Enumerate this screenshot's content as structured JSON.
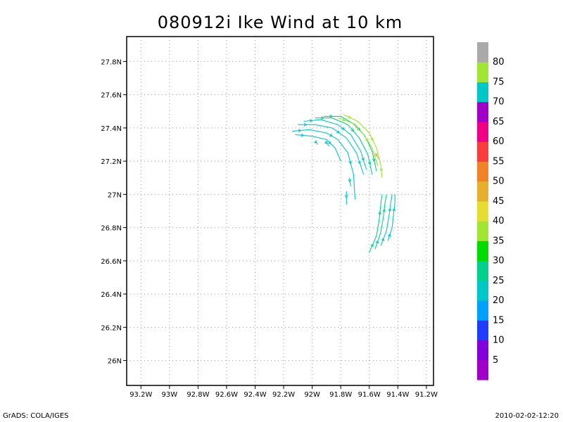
{
  "title": "080912i Ike Wind at 10 km",
  "footer": {
    "credit": "GrADS: COLA/IGES",
    "timestamp": "2010-02-02-12:20"
  },
  "map": {
    "lon_range": [
      -93.3,
      -91.15
    ],
    "lat_range": [
      25.85,
      27.95
    ],
    "lon_ticks": [
      {
        "v": -93.2,
        "label": "93.2W"
      },
      {
        "v": -93.0,
        "label": "93W"
      },
      {
        "v": -92.8,
        "label": "92.8W"
      },
      {
        "v": -92.6,
        "label": "92.6W"
      },
      {
        "v": -92.4,
        "label": "92.4W"
      },
      {
        "v": -92.2,
        "label": "92.2W"
      },
      {
        "v": -92.0,
        "label": "92W"
      },
      {
        "v": -91.8,
        "label": "91.8W"
      },
      {
        "v": -91.6,
        "label": "91.6W"
      },
      {
        "v": -91.4,
        "label": "91.4W"
      },
      {
        "v": -91.2,
        "label": "91.2W"
      }
    ],
    "lat_ticks": [
      {
        "v": 26.0,
        "label": "26N"
      },
      {
        "v": 26.2,
        "label": "26.2N"
      },
      {
        "v": 26.4,
        "label": "26.4N"
      },
      {
        "v": 26.6,
        "label": "26.6N"
      },
      {
        "v": 26.8,
        "label": "26.8N"
      },
      {
        "v": 27.0,
        "label": "27N"
      },
      {
        "v": 27.2,
        "label": "27.2N"
      },
      {
        "v": 27.4,
        "label": "27.4N"
      },
      {
        "v": 27.6,
        "label": "27.6N"
      },
      {
        "v": 27.8,
        "label": "27.8N"
      }
    ],
    "grid": "dotted"
  },
  "colorbar": {
    "levels": [
      5,
      10,
      15,
      20,
      25,
      30,
      35,
      40,
      45,
      50,
      55,
      60,
      65,
      70,
      75,
      80
    ],
    "colors": [
      "#a000c8",
      "#8200dc",
      "#1e3cff",
      "#00a0ff",
      "#00c8c8",
      "#00d28c",
      "#00dc00",
      "#a0e632",
      "#e6dc32",
      "#e6af2d",
      "#f08228",
      "#fa3c3c",
      "#f00082",
      "#a000c8",
      "#00c8c8",
      "#a0e632",
      "#aaaaaa"
    ]
  },
  "chart_data": {
    "type": "streamlines",
    "variable": "wind",
    "streamlines": [
      {
        "color": "#00c8c8",
        "points": [
          [
            -92.14,
            27.38
          ],
          [
            -92.02,
            27.39
          ],
          [
            -91.9,
            27.37
          ],
          [
            -91.82,
            27.33
          ],
          [
            -91.75,
            27.25
          ],
          [
            -91.71,
            27.12
          ],
          [
            -91.7,
            26.97
          ]
        ]
      },
      {
        "color": "#00c8c8",
        "points": [
          [
            -92.12,
            27.36
          ],
          [
            -92.0,
            27.35
          ],
          [
            -91.9,
            27.33
          ],
          [
            -91.84,
            27.28
          ],
          [
            -91.8,
            27.2
          ]
        ]
      },
      {
        "color": "#00c8c8",
        "points": [
          [
            -92.1,
            27.42
          ],
          [
            -91.98,
            27.42
          ],
          [
            -91.86,
            27.4
          ],
          [
            -91.76,
            27.34
          ],
          [
            -91.69,
            27.25
          ],
          [
            -91.64,
            27.12
          ]
        ]
      },
      {
        "color": "#00c8c8",
        "points": [
          [
            -92.06,
            27.44
          ],
          [
            -91.94,
            27.45
          ],
          [
            -91.82,
            27.42
          ],
          [
            -91.73,
            27.36
          ],
          [
            -91.66,
            27.26
          ],
          [
            -91.62,
            27.15
          ]
        ]
      },
      {
        "color": "#00d28c",
        "points": [
          [
            -91.98,
            27.46
          ],
          [
            -91.86,
            27.46
          ],
          [
            -91.75,
            27.42
          ],
          [
            -91.67,
            27.34
          ],
          [
            -91.61,
            27.24
          ],
          [
            -91.58,
            27.12
          ]
        ]
      },
      {
        "color": "#00d28c",
        "points": [
          [
            -91.92,
            27.47
          ],
          [
            -91.8,
            27.47
          ],
          [
            -91.7,
            27.42
          ],
          [
            -91.63,
            27.35
          ],
          [
            -91.58,
            27.26
          ],
          [
            -91.55,
            27.14
          ]
        ]
      },
      {
        "color": "#a0e632",
        "points": [
          [
            -91.82,
            27.46
          ],
          [
            -91.72,
            27.43
          ],
          [
            -91.64,
            27.36
          ],
          [
            -91.58,
            27.28
          ],
          [
            -91.54,
            27.17
          ]
        ]
      },
      {
        "color": "#a0e632",
        "points": [
          [
            -91.78,
            27.48
          ],
          [
            -91.68,
            27.44
          ],
          [
            -91.6,
            27.37
          ],
          [
            -91.55,
            27.28
          ],
          [
            -91.52,
            27.18
          ],
          [
            -91.51,
            27.1
          ]
        ]
      },
      {
        "color": "#e6af2d",
        "points": [
          [
            -91.56,
            27.25
          ],
          [
            -91.53,
            27.21
          ]
        ]
      },
      {
        "color": "#00c8c8",
        "points": [
          [
            -91.91,
            27.32
          ],
          [
            -91.88,
            27.29
          ]
        ]
      },
      {
        "color": "#00c8c8",
        "points": [
          [
            -91.98,
            27.32
          ],
          [
            -91.96,
            27.3
          ]
        ]
      },
      {
        "color": "#00c8c8",
        "points": [
          [
            -91.74,
            27.1
          ],
          [
            -91.73,
            27.05
          ]
        ]
      },
      {
        "color": "#00c8c8",
        "points": [
          [
            -91.76,
            27.02
          ],
          [
            -91.76,
            26.94
          ]
        ]
      },
      {
        "color": "#00d28c",
        "points": [
          [
            -91.6,
            26.65
          ],
          [
            -91.55,
            26.75
          ],
          [
            -91.53,
            26.85
          ],
          [
            -91.52,
            26.94
          ],
          [
            -91.51,
            27.0
          ]
        ]
      },
      {
        "color": "#00d28c",
        "points": [
          [
            -91.56,
            26.67
          ],
          [
            -91.52,
            26.77
          ],
          [
            -91.5,
            26.87
          ],
          [
            -91.49,
            26.95
          ],
          [
            -91.48,
            27.0
          ]
        ]
      },
      {
        "color": "#00c8c8",
        "points": [
          [
            -91.52,
            26.69
          ],
          [
            -91.48,
            26.78
          ],
          [
            -91.46,
            26.88
          ],
          [
            -91.45,
            26.95
          ],
          [
            -91.44,
            27.0
          ]
        ]
      },
      {
        "color": "#00c8c8",
        "points": [
          [
            -91.47,
            26.72
          ],
          [
            -91.44,
            26.8
          ],
          [
            -91.43,
            26.88
          ],
          [
            -91.42,
            26.95
          ],
          [
            -91.42,
            27.0
          ]
        ]
      }
    ]
  }
}
